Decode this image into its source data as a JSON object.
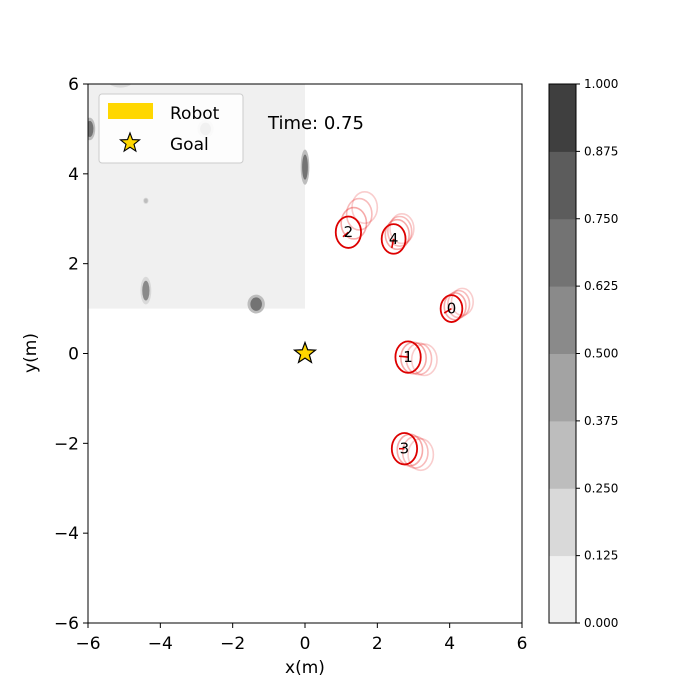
{
  "chart_data": {
    "type": "scatter",
    "xlabel": "x(m)",
    "ylabel": "y(m)",
    "xlim": [
      -6,
      6
    ],
    "ylim": [
      -6,
      6
    ],
    "xticks": [
      "−6",
      "−4",
      "−2",
      "0",
      "2",
      "4",
      "6"
    ],
    "yticks": [
      "−6",
      "−4",
      "−2",
      "0",
      "2",
      "4",
      "6"
    ],
    "time_label": "Time: 0.75",
    "legend": {
      "position": "top-left",
      "entries": [
        {
          "label": "Robot",
          "color": "#FFD700",
          "marker": "rect"
        },
        {
          "label": "Goal",
          "color": "#FFD700",
          "marker": "star"
        }
      ]
    },
    "goal": {
      "x": 0,
      "y": 0
    },
    "robot": {
      "x": -5.1,
      "y": 6.25,
      "radius": 0.3
    },
    "agents": [
      {
        "id": "0",
        "x": 4.05,
        "y": 1.0,
        "radius": 0.3,
        "trail": [
          [
            4.15,
            1.05
          ],
          [
            4.25,
            1.1
          ],
          [
            4.35,
            1.15
          ]
        ],
        "heading": [
          -0.2,
          -0.1
        ]
      },
      {
        "id": "1",
        "x": 2.85,
        "y": -0.08,
        "radius": 0.35,
        "trail": [
          [
            3.0,
            -0.1
          ],
          [
            3.15,
            -0.12
          ],
          [
            3.3,
            -0.14
          ]
        ],
        "heading": [
          -0.25,
          0.02
        ]
      },
      {
        "id": "2",
        "x": 1.2,
        "y": 2.7,
        "radius": 0.35,
        "trail": [
          [
            1.35,
            2.9
          ],
          [
            1.5,
            3.1
          ],
          [
            1.65,
            3.25
          ]
        ],
        "heading": [
          -0.15,
          -0.1
        ]
      },
      {
        "id": "3",
        "x": 2.75,
        "y": -2.12,
        "radius": 0.35,
        "trail": [
          [
            2.9,
            -2.15
          ],
          [
            3.05,
            -2.2
          ],
          [
            3.2,
            -2.25
          ]
        ],
        "heading": [
          -0.15,
          0.0
        ]
      },
      {
        "id": "4",
        "x": 2.45,
        "y": 2.55,
        "radius": 0.33,
        "trail": [
          [
            2.55,
            2.65
          ],
          [
            2.62,
            2.72
          ],
          [
            2.68,
            2.78
          ]
        ],
        "heading": [
          -0.05,
          -0.2
        ]
      }
    ],
    "occupancy_region": {
      "x": [
        -6,
        0
      ],
      "y": [
        1,
        6
      ],
      "value": 0.06
    },
    "occupancy_blobs": [
      {
        "x": -5.1,
        "y": 6.2,
        "rx": 0.3,
        "ry": 0.2,
        "value": 0.3
      },
      {
        "x": -5.95,
        "y": 5.0,
        "rx": 0.1,
        "ry": 0.18,
        "value": 0.75
      },
      {
        "x": -2.75,
        "y": 5.0,
        "rx": 0.15,
        "ry": 0.14,
        "value": 0.45
      },
      {
        "x": 0.0,
        "y": 4.15,
        "rx": 0.08,
        "ry": 0.28,
        "value": 0.65
      },
      {
        "x": -4.4,
        "y": 3.4,
        "rx": 0.05,
        "ry": 0.05,
        "value": 0.35
      },
      {
        "x": -4.4,
        "y": 1.4,
        "rx": 0.1,
        "ry": 0.22,
        "value": 0.55
      },
      {
        "x": -1.35,
        "y": 1.1,
        "rx": 0.16,
        "ry": 0.15,
        "value": 0.7
      }
    ],
    "colorbar": {
      "ticks": [
        "0.000",
        "0.125",
        "0.250",
        "0.375",
        "0.500",
        "0.625",
        "0.750",
        "0.875",
        "1.000"
      ],
      "levels": [
        0,
        0.125,
        0.25,
        0.375,
        0.5,
        0.625,
        0.75,
        0.875,
        1.0
      ],
      "colors": [
        "#f0f0f0",
        "#d9d9d9",
        "#bdbdbd",
        "#a3a3a3",
        "#8a8a8a",
        "#737373",
        "#5c5c5c",
        "#3f3f3f"
      ]
    }
  }
}
